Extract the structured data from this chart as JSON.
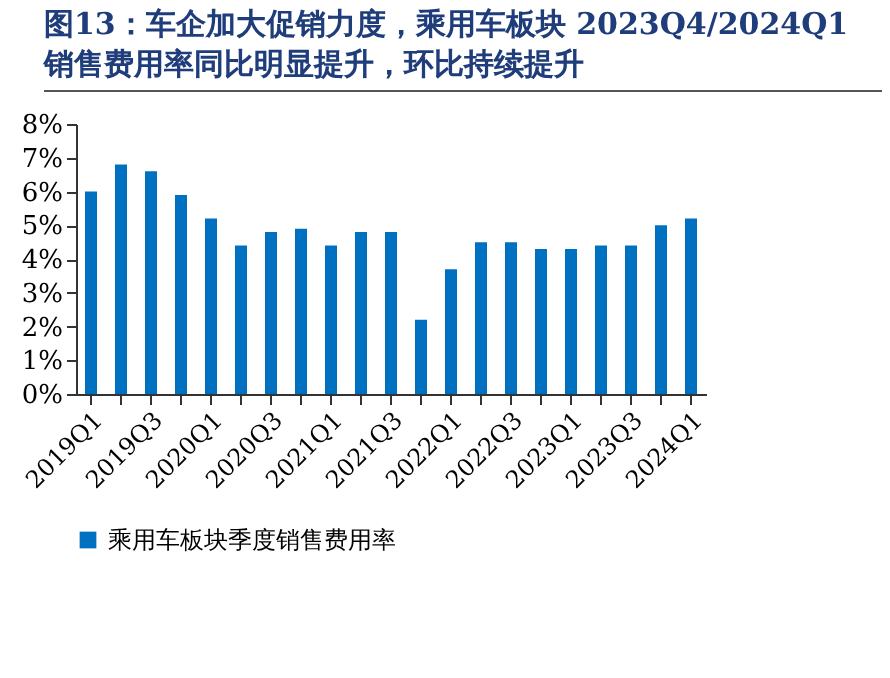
{
  "chart_data": {
    "type": "bar",
    "title": "图13：车企加大促销力度，乘用车板块 2023Q4/2024Q1 销售费用率同比明显提升，环比持续提升",
    "categories": [
      "2019Q1",
      null,
      "2019Q3",
      null,
      "2020Q1",
      null,
      "2020Q3",
      null,
      "2021Q1",
      null,
      "2021Q3",
      null,
      "2022Q1",
      null,
      "2022Q3",
      null,
      "2023Q1",
      null,
      "2023Q3",
      null,
      "2024Q1"
    ],
    "series": [
      {
        "name": "乘用车板块季度销售费用率",
        "color": "#0070c0",
        "values": [
          6.0,
          6.8,
          6.6,
          5.9,
          5.2,
          4.4,
          4.8,
          4.9,
          4.4,
          4.8,
          4.8,
          2.2,
          3.7,
          4.5,
          4.5,
          4.3,
          4.3,
          4.4,
          4.4,
          5.0,
          5.2
        ]
      }
    ],
    "ylim": [
      0,
      8
    ],
    "yticks": [
      {
        "value": 0,
        "label": "0%"
      },
      {
        "value": 1,
        "label": "1%"
      },
      {
        "value": 2,
        "label": "2%"
      },
      {
        "value": 3,
        "label": "3%"
      },
      {
        "value": 4,
        "label": "4%"
      },
      {
        "value": 5,
        "label": "5%"
      },
      {
        "value": 6,
        "label": "6%"
      },
      {
        "value": 7,
        "label": "7%"
      },
      {
        "value": 8,
        "label": "8%"
      }
    ],
    "grid": false,
    "legend": "bottom"
  }
}
